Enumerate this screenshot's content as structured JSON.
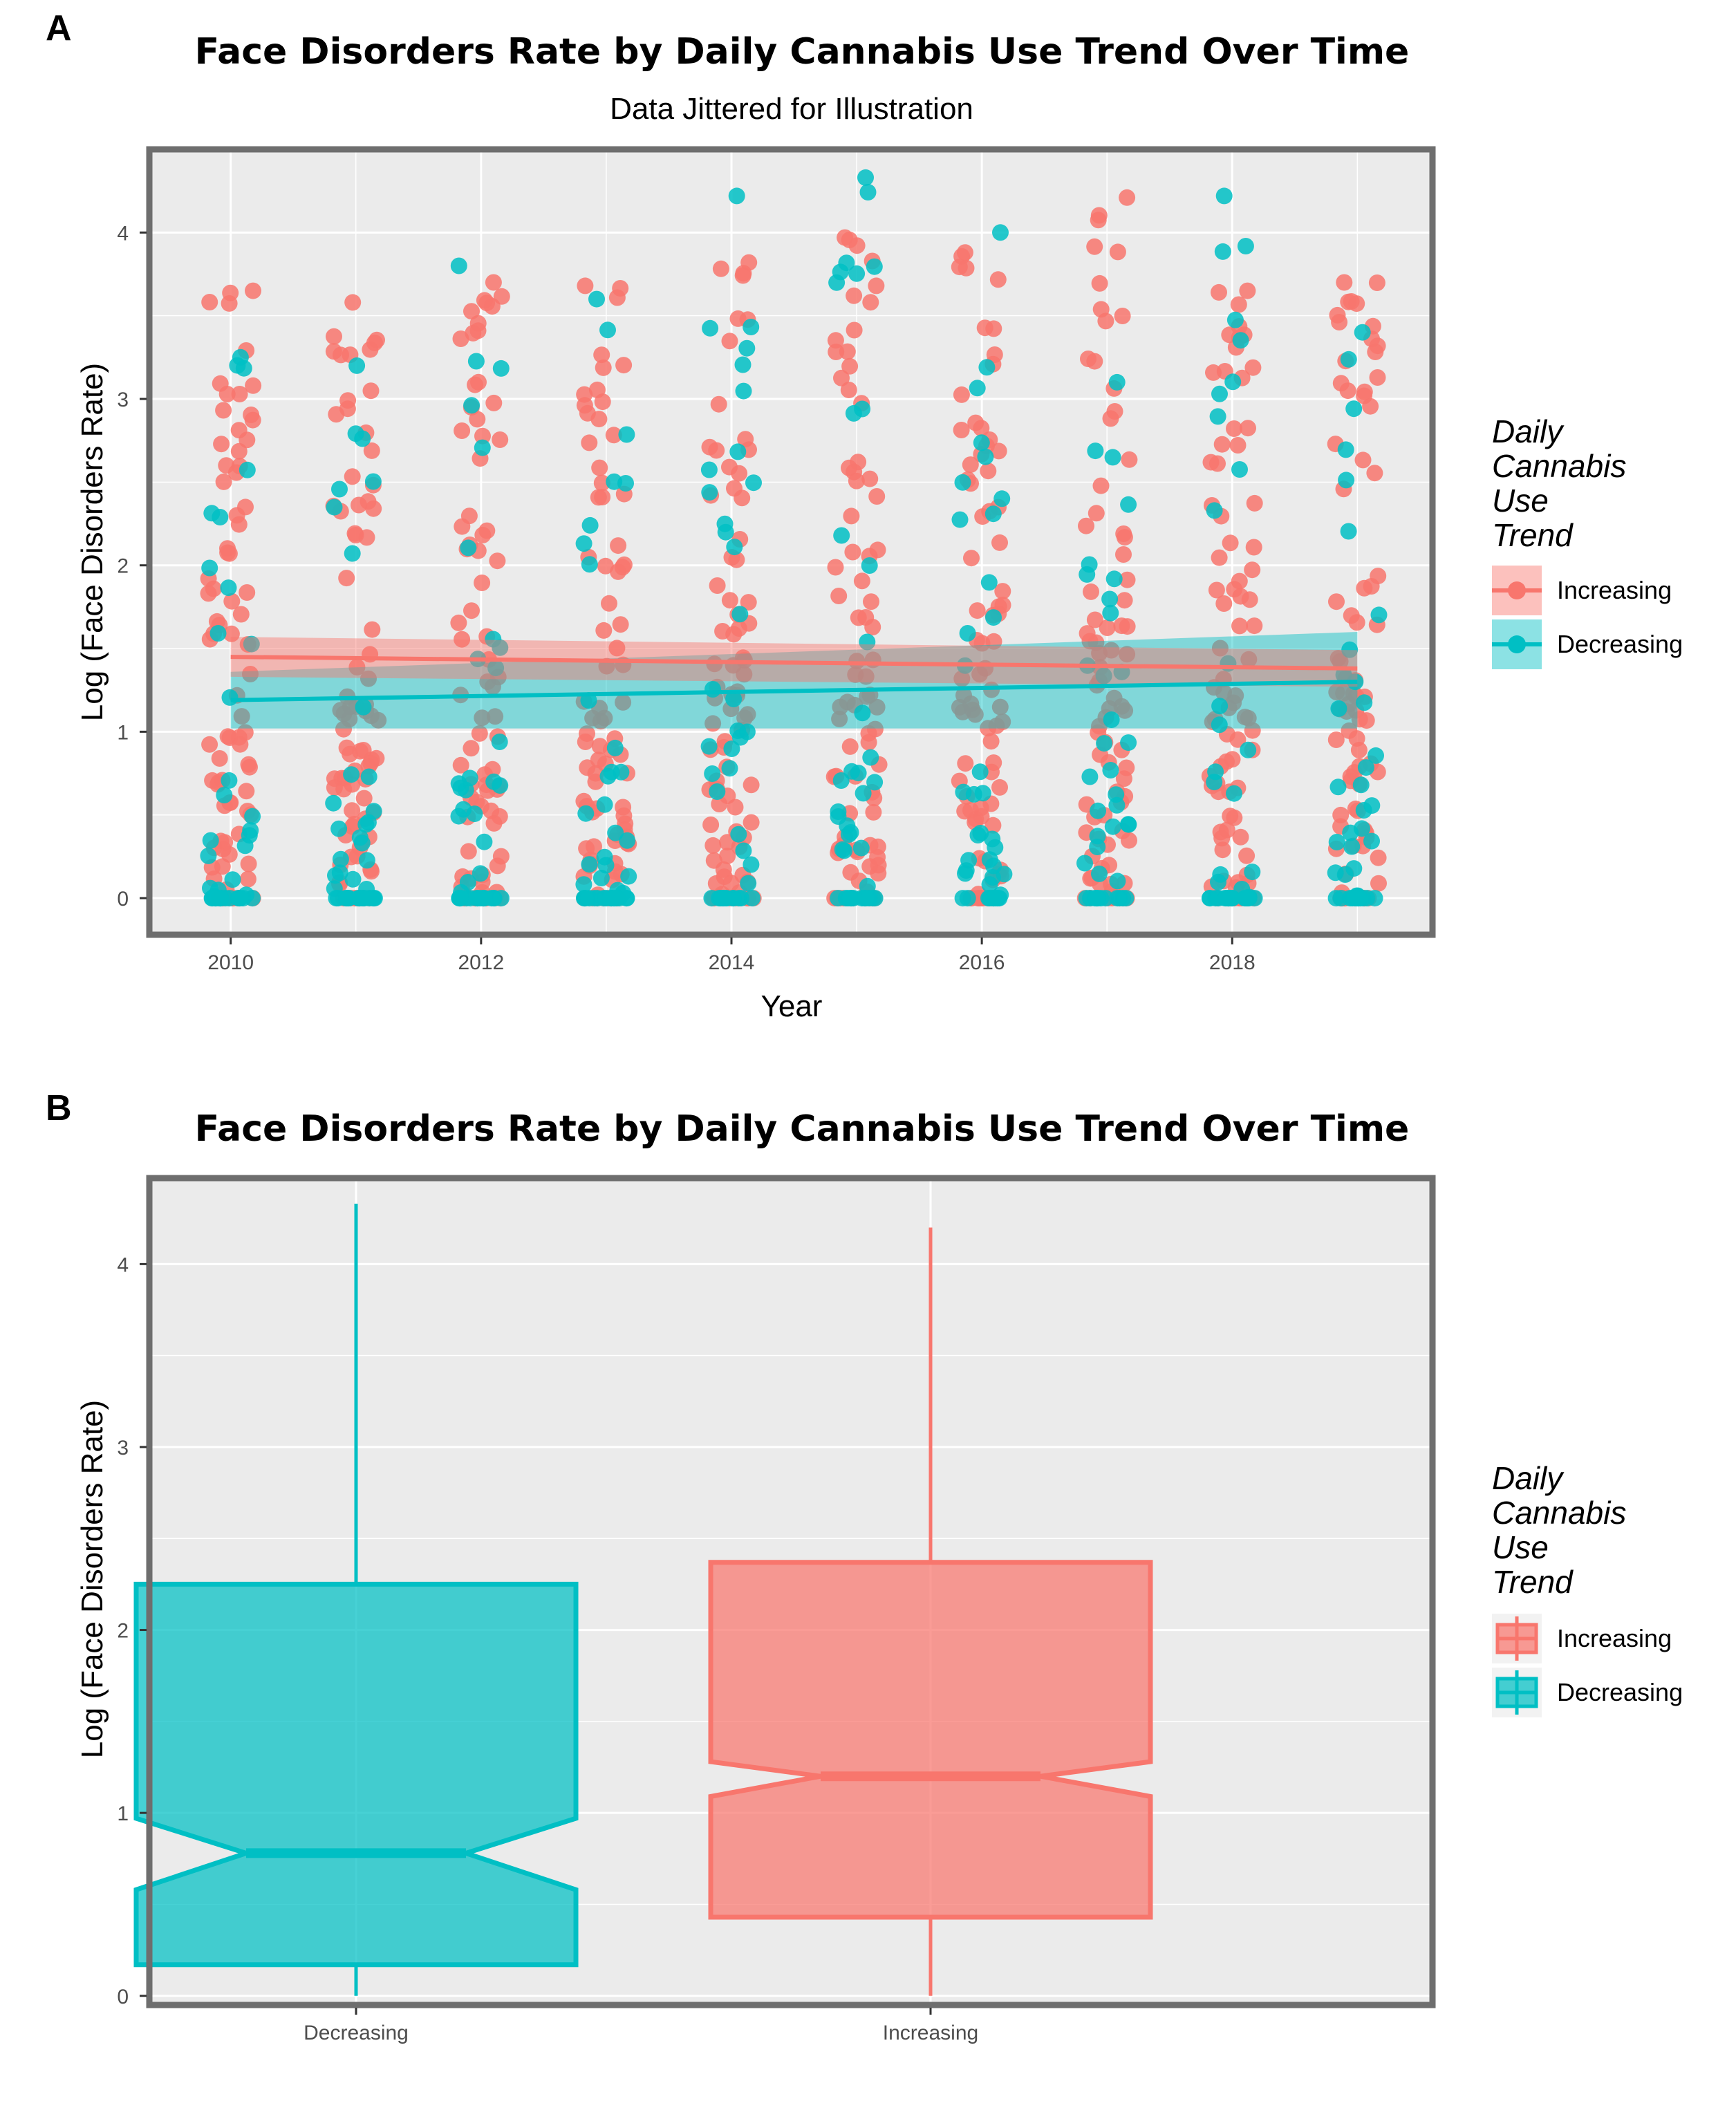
{
  "colors": {
    "increasing": "#F8766D",
    "decreasing": "#00BFC4",
    "panel_bg": "#EBEBEB",
    "panel_border": "#6E6E6E",
    "grid": "#FFFFFF"
  },
  "chart_data": [
    {
      "panel": "A",
      "type": "scatter",
      "title": "Face Disorders Rate by Daily Cannabis Use Trend Over Time",
      "subtitle": "Data Jittered for Illustration",
      "xlabel": "Year",
      "ylabel": "Log (Face Disorders Rate)",
      "xlim": [
        2009.35,
        2019.6
      ],
      "ylim": [
        -0.22,
        4.5
      ],
      "xticks": [
        2010,
        2012,
        2014,
        2016,
        2018
      ],
      "yticks": [
        0,
        1,
        2,
        3,
        4
      ],
      "grid": true,
      "legend": {
        "title": "Daily Cannabis Use Trend",
        "position": "right",
        "entries": [
          "Increasing",
          "Decreasing"
        ]
      },
      "years": [
        2010,
        2011,
        2012,
        2013,
        2014,
        2015,
        2016,
        2017,
        2018,
        2019
      ],
      "series": [
        {
          "name": "Increasing",
          "color": "#F8766D",
          "trend": {
            "x": [
              2010,
              2019
            ],
            "y": [
              1.45,
              1.38
            ],
            "ci_low": [
              1.33,
              1.27
            ],
            "ci_high": [
              1.57,
              1.49
            ]
          },
          "max_by_year": [
            3.65,
            3.58,
            3.7,
            3.68,
            3.82,
            3.97,
            3.88,
            4.21,
            3.65,
            3.7
          ]
        },
        {
          "name": "Decreasing",
          "color": "#00BFC4",
          "trend": {
            "x": [
              2010,
              2019
            ],
            "y": [
              1.19,
              1.3
            ],
            "ci_low": [
              1.02,
              1.02
            ],
            "ci_high": [
              1.36,
              1.6
            ]
          },
          "max_by_year": [
            3.25,
            3.2,
            3.8,
            3.6,
            4.22,
            4.33,
            4.0,
            3.1,
            4.22,
            3.4
          ]
        }
      ]
    },
    {
      "panel": "B",
      "type": "box",
      "title": "Face Disorders Rate by Daily Cannabis Use Trend Over Time",
      "xlabel": "",
      "ylabel": "Log (Face Disorders Rate)",
      "ylim": [
        -0.05,
        4.47
      ],
      "yticks": [
        0,
        1,
        2,
        3,
        4
      ],
      "categories": [
        "Decreasing",
        "Increasing"
      ],
      "grid": true,
      "notched": true,
      "legend": {
        "title": "Daily Cannabis Use Trend",
        "position": "right",
        "entries": [
          "Increasing",
          "Decreasing"
        ]
      },
      "boxes": [
        {
          "name": "Decreasing",
          "color": "#00BFC4",
          "min": 0.0,
          "q1": 0.17,
          "median": 0.78,
          "q3": 2.25,
          "max": 4.33,
          "notch_low": 0.58,
          "notch_high": 0.97
        },
        {
          "name": "Increasing",
          "color": "#F8766D",
          "min": 0.0,
          "q1": 0.43,
          "median": 1.2,
          "q3": 2.37,
          "max": 4.2,
          "notch_low": 1.09,
          "notch_high": 1.28
        }
      ]
    }
  ]
}
